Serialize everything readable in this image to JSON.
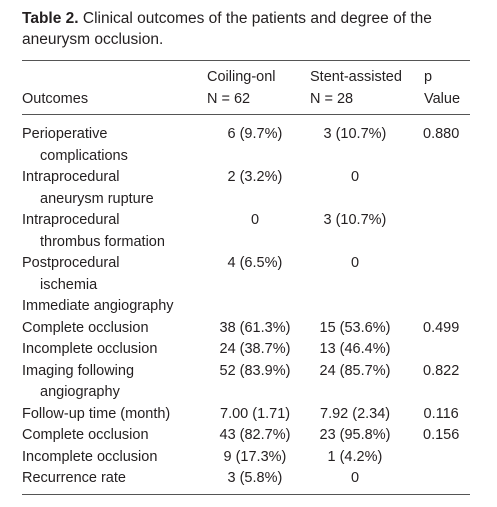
{
  "caption": {
    "label": "Table 2.",
    "text": "Clinical outcomes of the patients and degree of the aneurysm occlusion."
  },
  "table": {
    "header": [
      {
        "name": "Outcomes"
      },
      {
        "name": "Coiling-onl",
        "n": "N = 62"
      },
      {
        "name": "Stent-assisted",
        "n": "N = 28"
      },
      {
        "name": "p",
        "n": "Value"
      }
    ],
    "rows": [
      [
        [
          "Perioperative",
          "complications"
        ],
        "6 (9.7%)",
        "3 (10.7%)",
        "0.880"
      ],
      [
        [
          "Intraprocedural",
          "aneurysm rupture"
        ],
        "2 (3.2%)",
        "0",
        null
      ],
      [
        [
          "Intraprocedural",
          "thrombus formation"
        ],
        "0",
        "3 (10.7%)",
        null
      ],
      [
        [
          "Postprocedural",
          "ischemia"
        ],
        "4 (6.5%)",
        "0",
        null
      ],
      [
        [
          "Immediate angiography"
        ],
        null,
        null,
        null
      ],
      [
        [
          "Complete occlusion"
        ],
        "38 (61.3%)",
        "15 (53.6%)",
        "0.499"
      ],
      [
        [
          "Incomplete occlusion"
        ],
        "24 (38.7%)",
        "13 (46.4%)",
        null
      ],
      [
        [
          "Imaging following",
          "angiography"
        ],
        "52 (83.9%)",
        "24 (85.7%)",
        "0.822"
      ],
      [
        [
          "Follow-up time (month)"
        ],
        "7.00 (1.71)",
        "7.92 (2.34)",
        "0.116"
      ],
      [
        [
          "Complete occlusion"
        ],
        "43 (82.7%)",
        "23 (95.8%)",
        "0.156"
      ],
      [
        [
          "Incomplete occlusion"
        ],
        "9 (17.3%)",
        "1 (4.2%)",
        null
      ],
      [
        [
          "Recurrence rate"
        ],
        "3 (5.8%)",
        "0",
        null
      ]
    ]
  }
}
